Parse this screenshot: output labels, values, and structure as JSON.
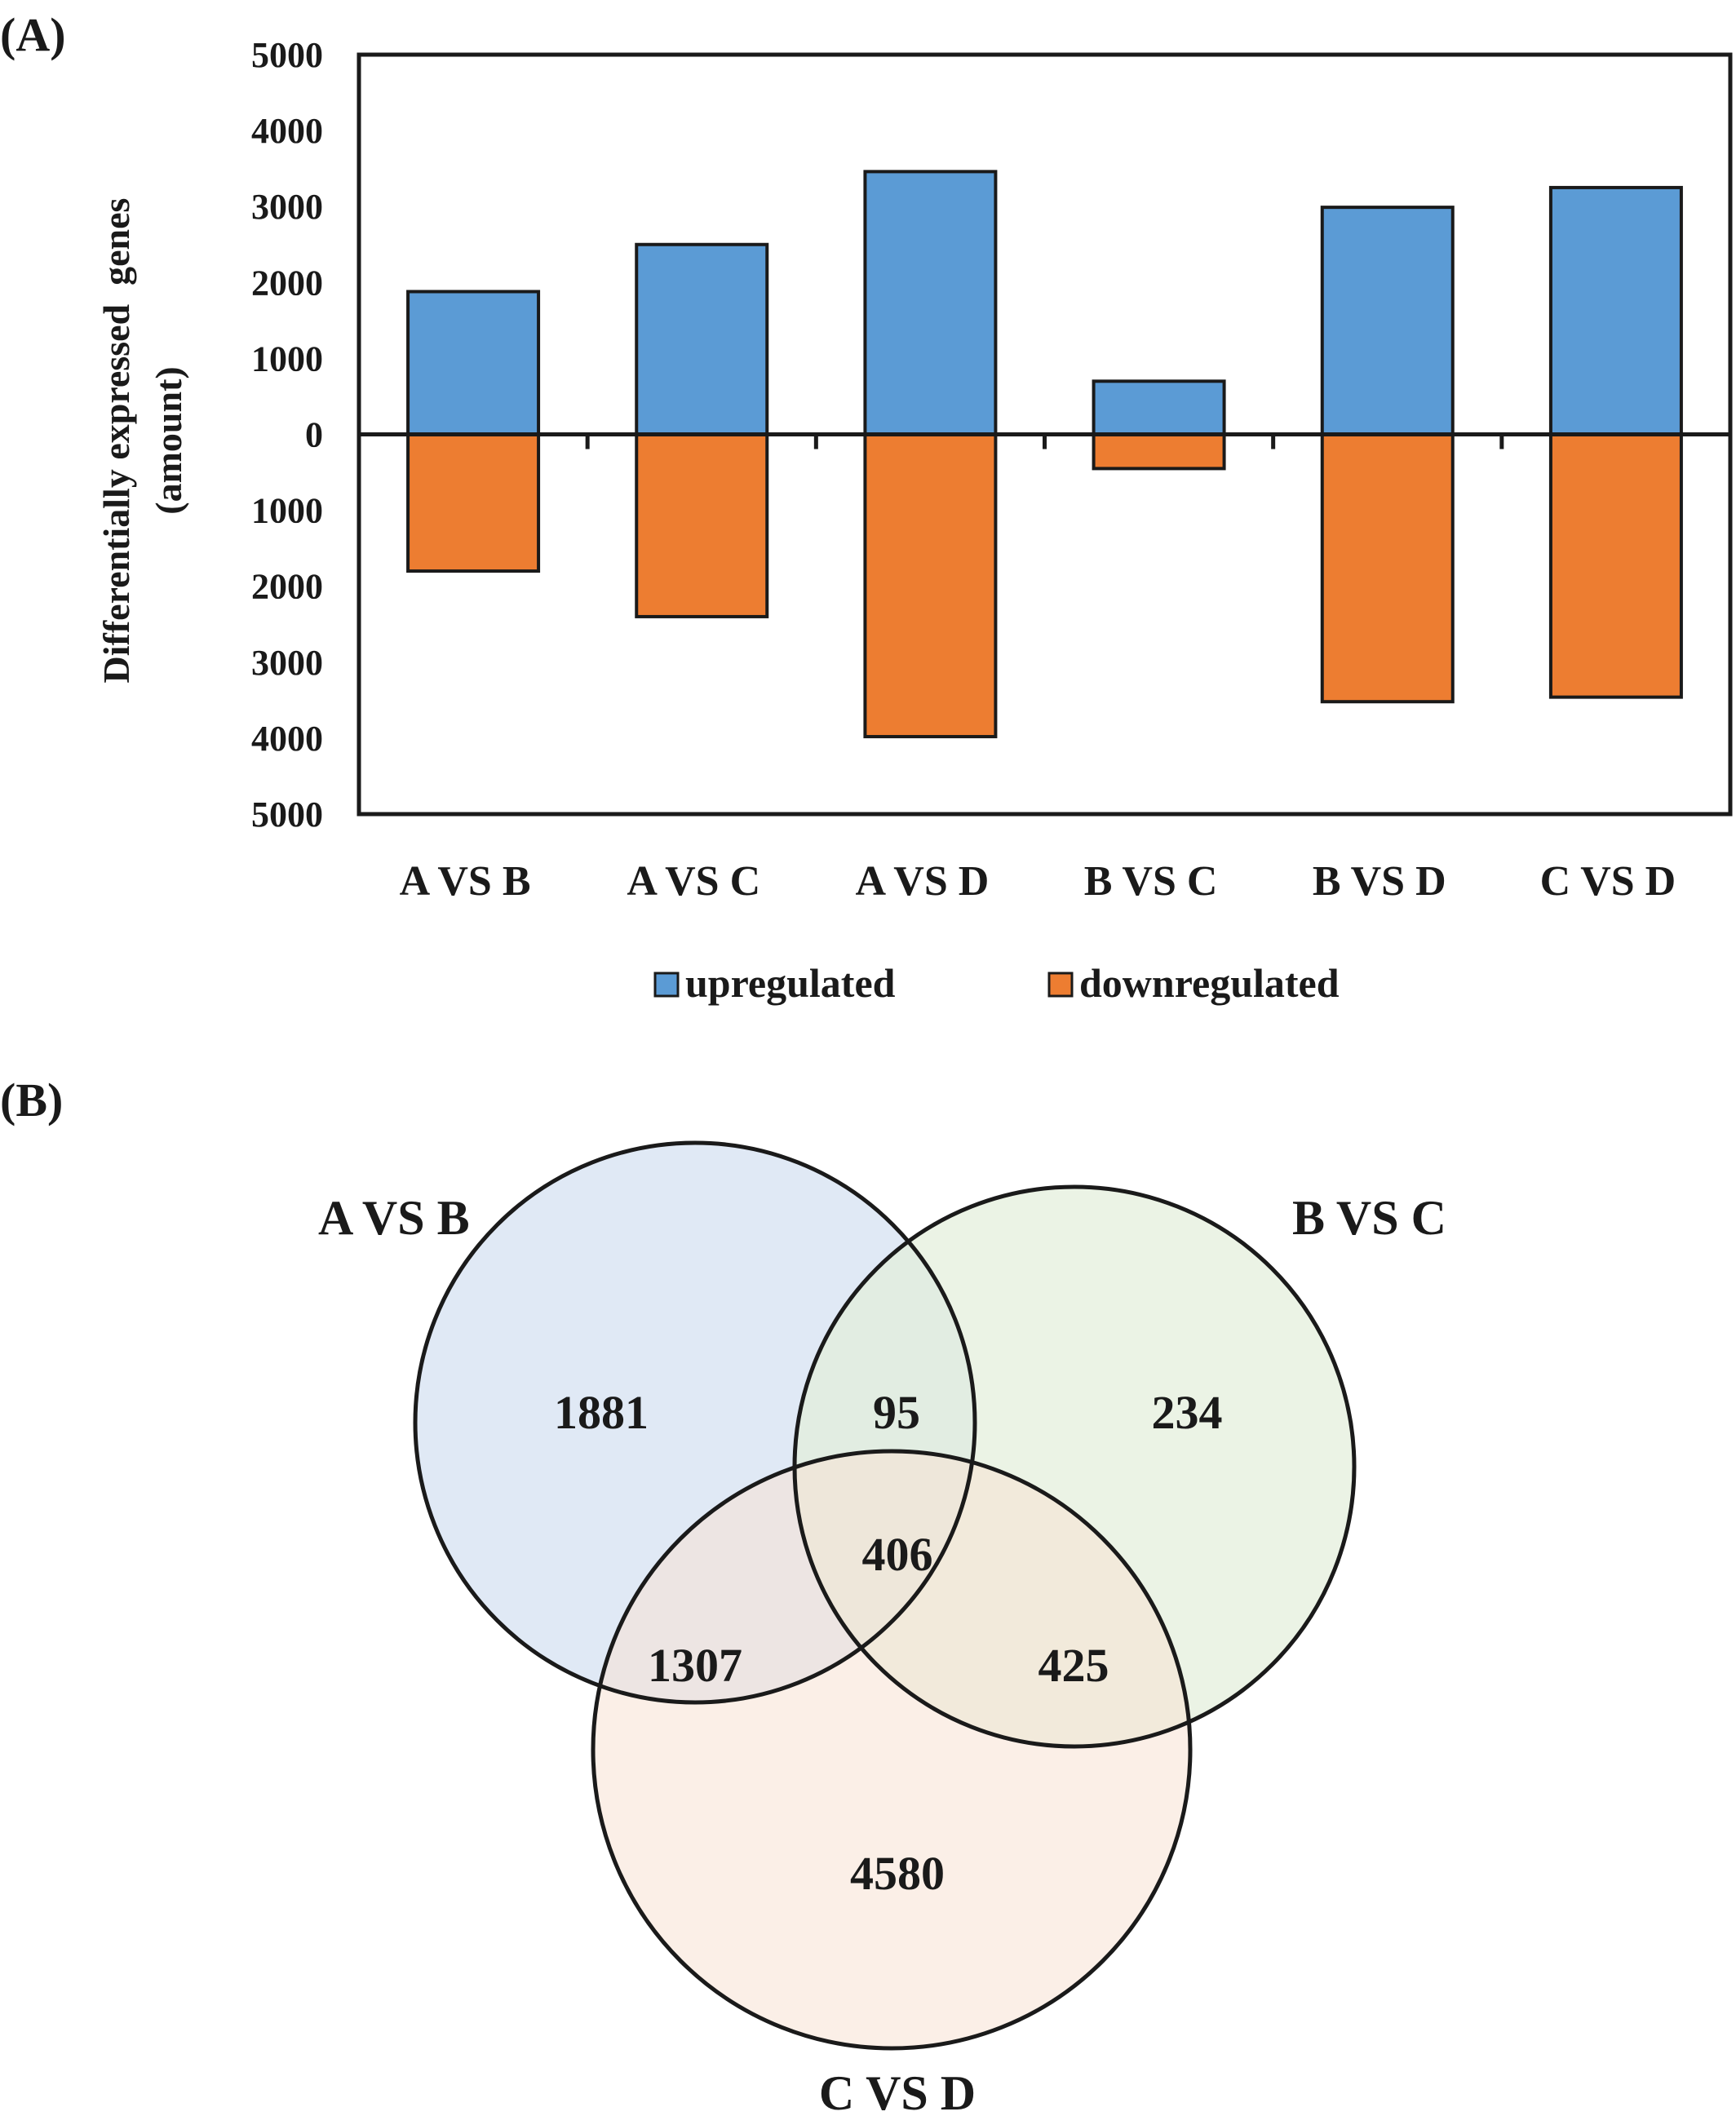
{
  "panel_a": {
    "label": "(A)"
  },
  "panel_b": {
    "label": "(B)"
  },
  "chart_data": [
    {
      "type": "bar",
      "panel": "(A)",
      "ylabel_line1": "Differentially expressed  genes",
      "ylabel_line2": "(amount)",
      "xlabel": "",
      "ylim": [
        -5000,
        5000
      ],
      "yticks": [
        5000,
        4000,
        3000,
        2000,
        1000,
        0,
        1000,
        2000,
        3000,
        4000,
        5000
      ],
      "grid": false,
      "legend_position": "bottom",
      "categories": [
        "A VS B",
        "A VS C",
        "A VS D",
        "B VS C",
        "B VS D",
        "C VS D"
      ],
      "series": [
        {
          "name": "upregulated",
          "color": "#5b9bd5",
          "values": [
            1880,
            2500,
            3460,
            700,
            2990,
            3250
          ]
        },
        {
          "name": "downregulated",
          "color": "#ed7d31",
          "values": [
            -1800,
            -2400,
            -3980,
            -450,
            -3520,
            -3460
          ]
        }
      ]
    },
    {
      "type": "venn",
      "panel": "(B)",
      "sets": [
        {
          "name": "A VS B",
          "color": "#dee8f4"
        },
        {
          "name": "B VS C",
          "color": "#e3eeda"
        },
        {
          "name": "C VS D",
          "color": "#f7e1d4"
        }
      ],
      "regions": {
        "a_only": "1881",
        "ab": "95",
        "b_only": "234",
        "abc": "406",
        "ac": "1307",
        "bc": "425",
        "c_only": "4580"
      }
    }
  ]
}
